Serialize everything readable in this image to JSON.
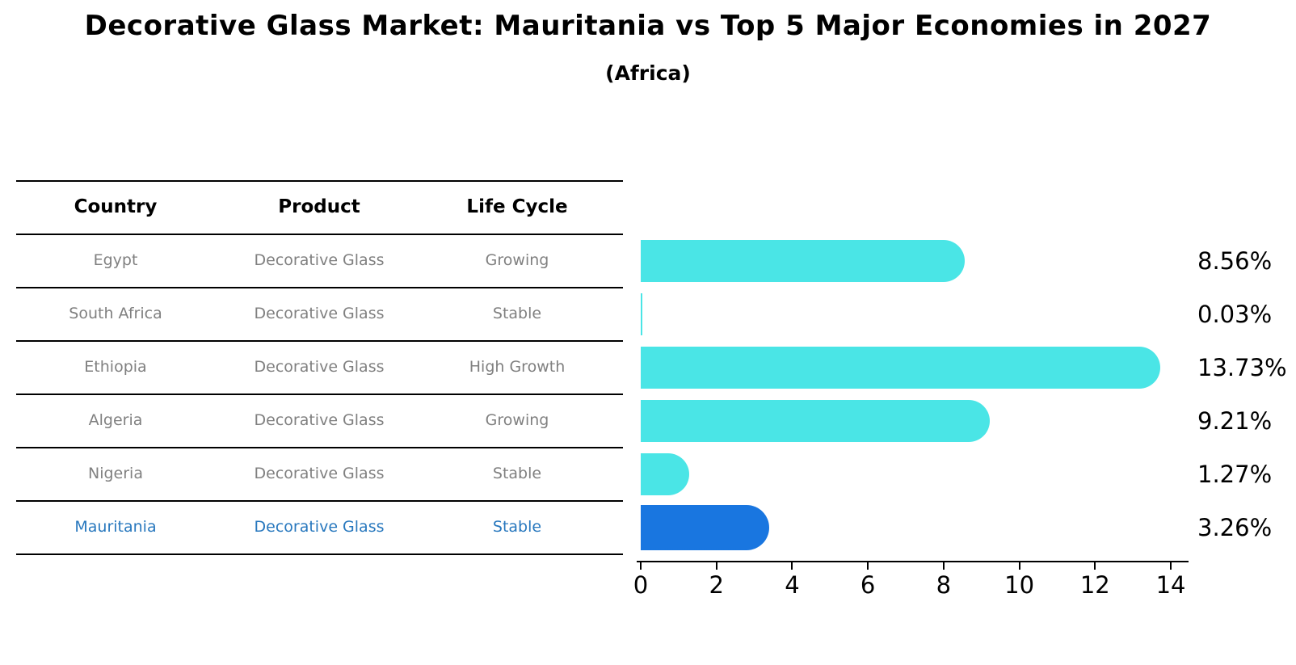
{
  "title": "Decorative Glass Market: Mauritania vs Top 5 Major Economies in 2027",
  "subtitle": "(Africa)",
  "table": {
    "headers": [
      "Country",
      "Product",
      "Life Cycle"
    ],
    "rows": [
      {
        "country": "Egypt",
        "product": "Decorative Glass",
        "life_cycle": "Growing",
        "highlight": false
      },
      {
        "country": "South Africa",
        "product": "Decorative Glass",
        "life_cycle": "Stable",
        "highlight": false
      },
      {
        "country": "Ethiopia",
        "product": "Decorative Glass",
        "life_cycle": "High Growth",
        "highlight": false
      },
      {
        "country": "Algeria",
        "product": "Decorative Glass",
        "life_cycle": "Growing",
        "highlight": false
      },
      {
        "country": "Nigeria",
        "product": "Decorative Glass",
        "life_cycle": "Stable",
        "highlight": false
      },
      {
        "country": "Mauritania",
        "product": "Decorative Glass",
        "life_cycle": "Stable",
        "highlight": true
      }
    ]
  },
  "chart_data": {
    "type": "bar",
    "orientation": "horizontal",
    "categories": [
      "Egypt",
      "South Africa",
      "Ethiopia",
      "Algeria",
      "Nigeria",
      "Mauritania"
    ],
    "values": [
      8.56,
      0.03,
      13.73,
      9.21,
      1.27,
      3.26
    ],
    "value_labels": [
      "8.56%",
      "0.03%",
      "13.73%",
      "9.21%",
      "1.27%",
      "3.26%"
    ],
    "highlight_index": 5,
    "xlim": [
      0,
      14
    ],
    "x_ticks": [
      "0",
      "2",
      "4",
      "6",
      "8",
      "10",
      "12",
      "14"
    ],
    "grid": false,
    "legend": "none",
    "title": "Decorative Glass Market: Mauritania vs Top 5 Major Economies in 2027",
    "xlabel": "",
    "ylabel": ""
  },
  "colors": {
    "bar": "#4AE5E6",
    "highlight_bar": "#1976E0",
    "highlight_border": "#1976E0",
    "highlight_text": "#2878BE",
    "row_text": "#808080",
    "line": "#000000",
    "background": "#FFFFFF"
  }
}
